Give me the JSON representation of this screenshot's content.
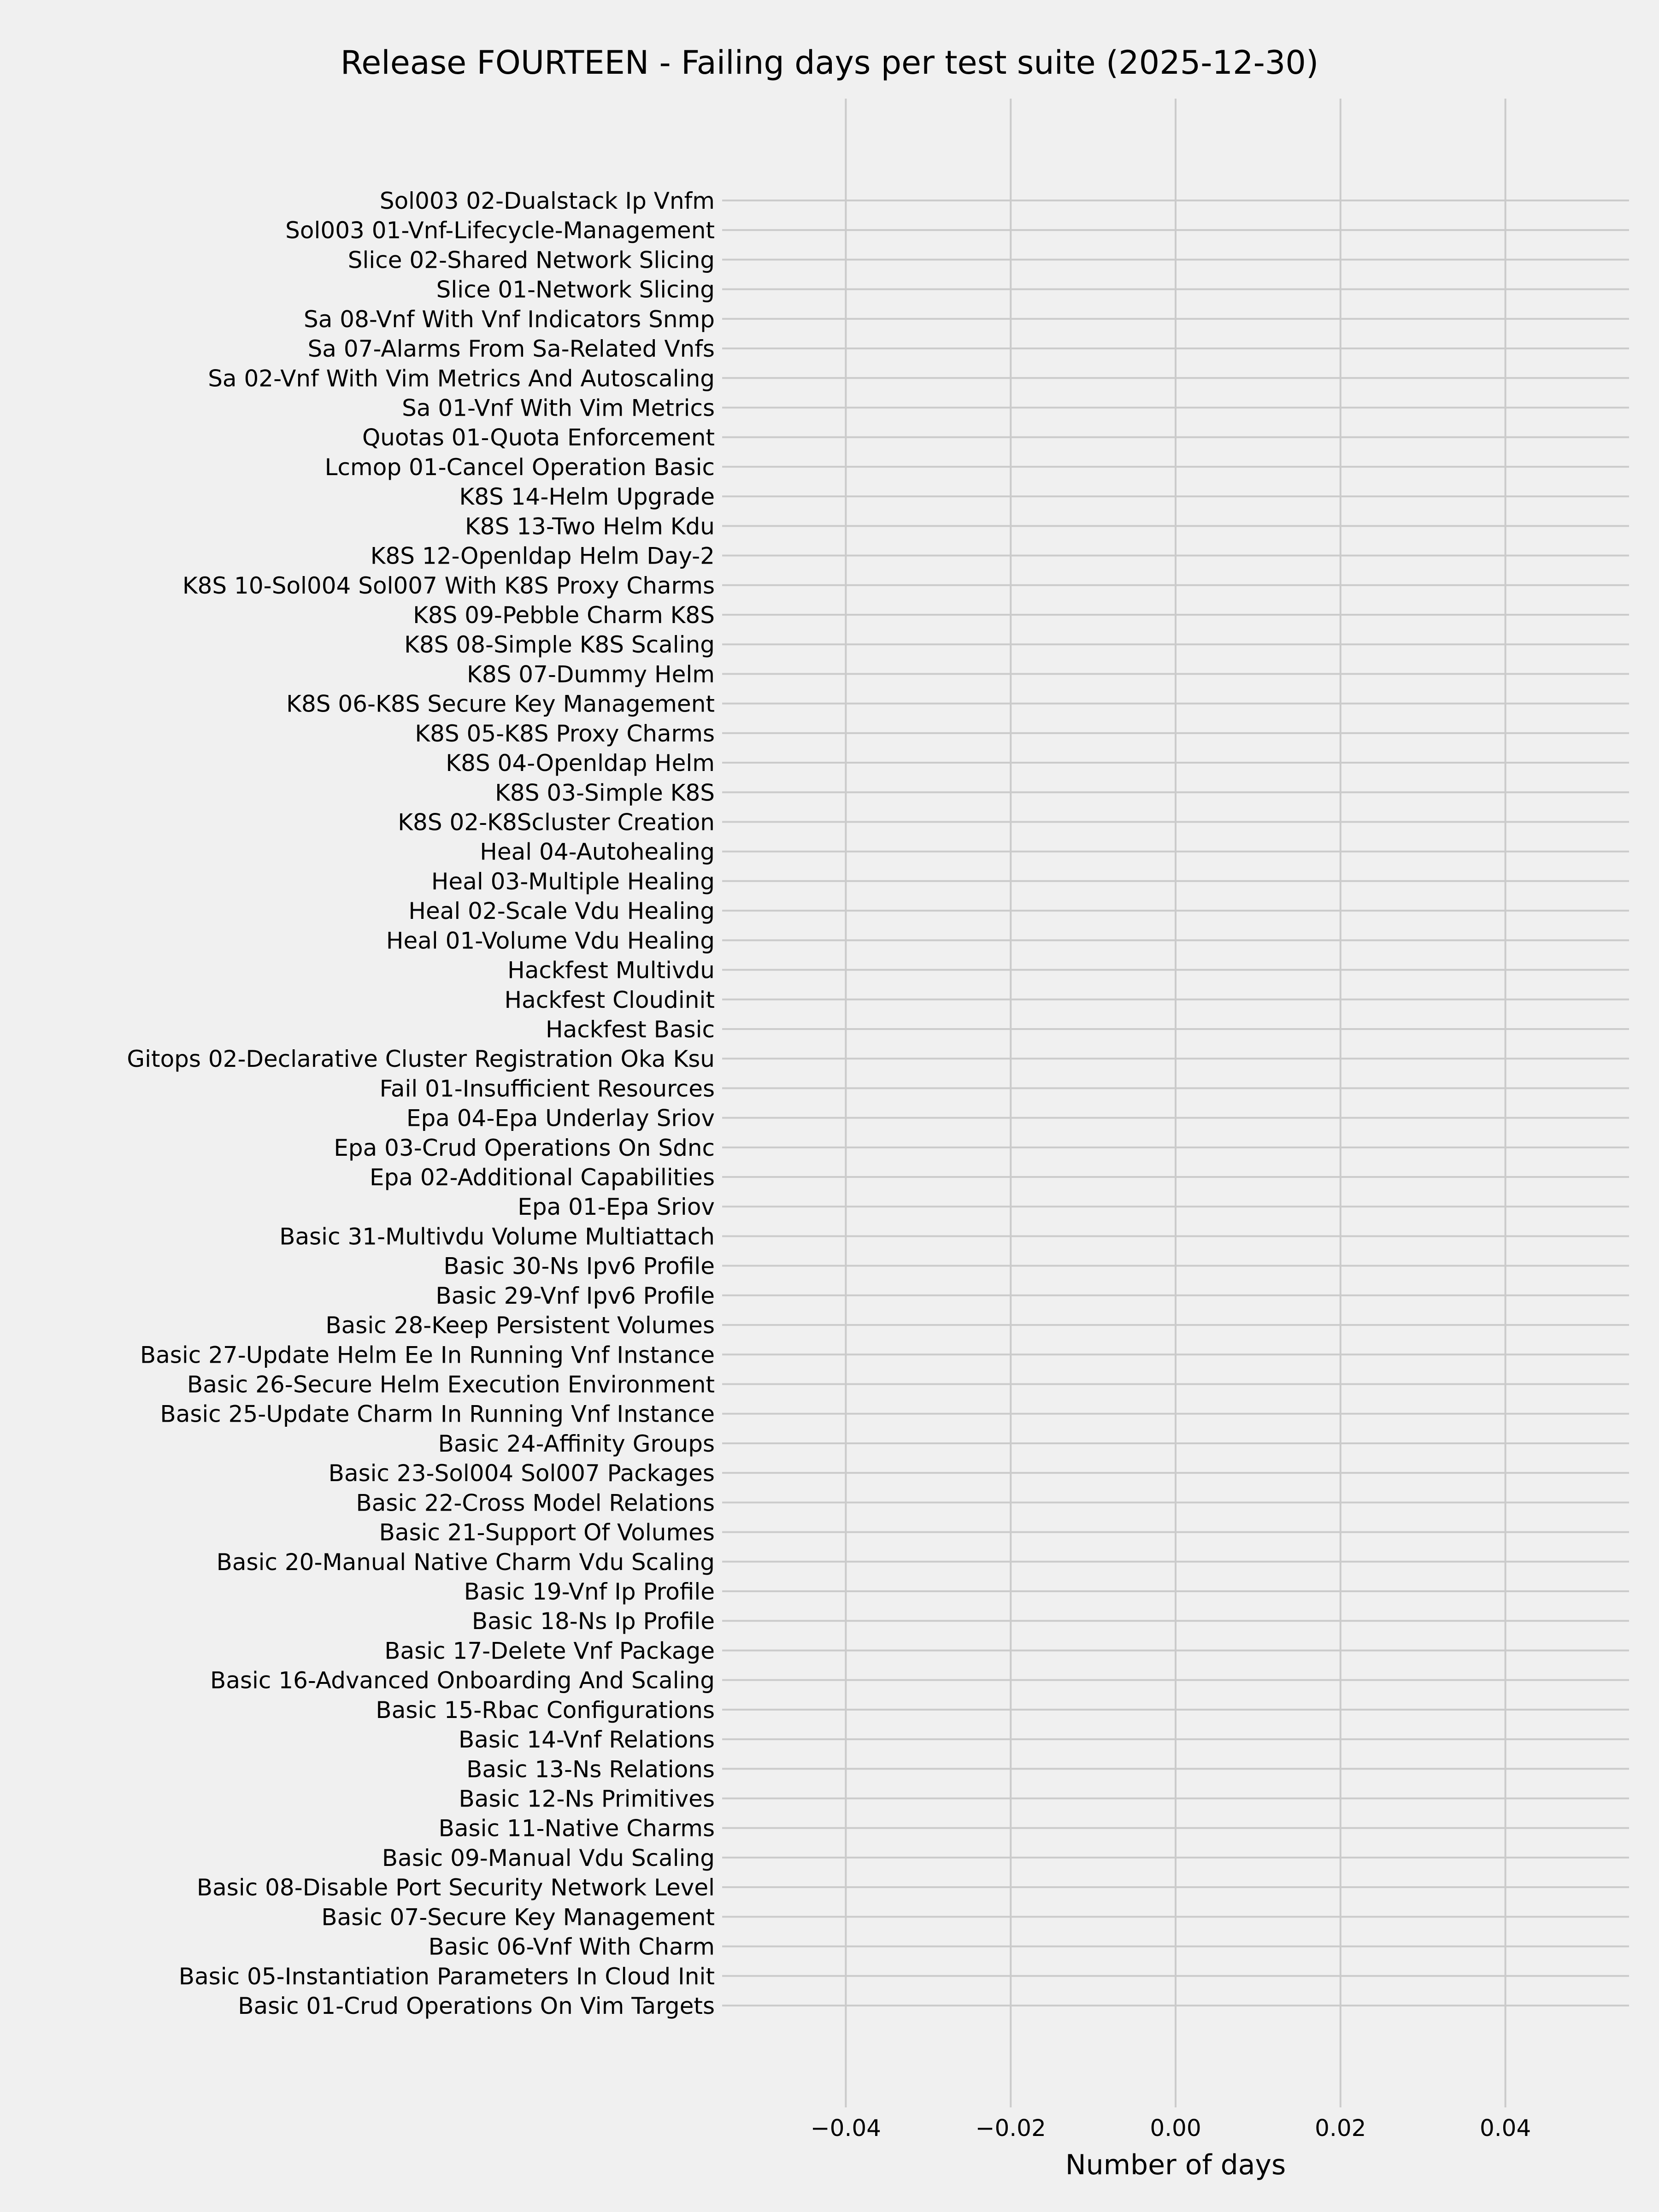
{
  "chart_data": {
    "type": "bar",
    "orientation": "horizontal",
    "title": "Release FOURTEEN - Failing days per test suite (2025-12-30)",
    "xlabel": "Number of days",
    "ylabel": "",
    "xlim": [
      -0.055,
      0.055
    ],
    "xticks": [
      -0.04,
      -0.02,
      0.0,
      0.02,
      0.04
    ],
    "xtick_labels": [
      "−0.04",
      "−0.02",
      "0.00",
      "0.02",
      "0.04"
    ],
    "grid": true,
    "background_color": "#f0f0f0",
    "grid_color": "#cbcbcb",
    "categories": [
      "Sol003 02-Dualstack Ip Vnfm",
      "Sol003 01-Vnf-Lifecycle-Management",
      "Slice 02-Shared Network Slicing",
      "Slice 01-Network Slicing",
      "Sa 08-Vnf With Vnf Indicators Snmp",
      "Sa 07-Alarms From Sa-Related Vnfs",
      "Sa 02-Vnf With Vim Metrics And Autoscaling",
      "Sa 01-Vnf With Vim Metrics",
      "Quotas 01-Quota Enforcement",
      "Lcmop 01-Cancel Operation Basic",
      "K8S 14-Helm Upgrade",
      "K8S 13-Two Helm Kdu",
      "K8S 12-Openldap Helm Day-2",
      "K8S 10-Sol004 Sol007 With K8S Proxy Charms",
      "K8S 09-Pebble Charm K8S",
      "K8S 08-Simple K8S Scaling",
      "K8S 07-Dummy Helm",
      "K8S 06-K8S Secure Key Management",
      "K8S 05-K8S Proxy Charms",
      "K8S 04-Openldap Helm",
      "K8S 03-Simple K8S",
      "K8S 02-K8Scluster Creation",
      "Heal 04-Autohealing",
      "Heal 03-Multiple Healing",
      "Heal 02-Scale Vdu Healing",
      "Heal 01-Volume Vdu Healing",
      "Hackfest Multivdu",
      "Hackfest Cloudinit",
      "Hackfest Basic",
      "Gitops 02-Declarative Cluster Registration Oka Ksu",
      "Fail 01-Insufficient Resources",
      "Epa 04-Epa Underlay Sriov",
      "Epa 03-Crud Operations On Sdnc",
      "Epa 02-Additional Capabilities",
      "Epa 01-Epa Sriov",
      "Basic 31-Multivdu Volume Multiattach",
      "Basic 30-Ns Ipv6 Profile",
      "Basic 29-Vnf Ipv6 Profile",
      "Basic 28-Keep Persistent Volumes",
      "Basic 27-Update Helm Ee In Running Vnf Instance",
      "Basic 26-Secure Helm Execution Environment",
      "Basic 25-Update Charm In Running Vnf Instance",
      "Basic 24-Affinity Groups",
      "Basic 23-Sol004 Sol007 Packages",
      "Basic 22-Cross Model Relations",
      "Basic 21-Support Of Volumes",
      "Basic 20-Manual Native Charm Vdu Scaling",
      "Basic 19-Vnf Ip Profile",
      "Basic 18-Ns Ip Profile",
      "Basic 17-Delete Vnf Package",
      "Basic 16-Advanced Onboarding And Scaling",
      "Basic 15-Rbac Configurations",
      "Basic 14-Vnf Relations",
      "Basic 13-Ns Relations",
      "Basic 12-Ns Primitives",
      "Basic 11-Native Charms",
      "Basic 09-Manual Vdu Scaling",
      "Basic 08-Disable Port Security Network Level",
      "Basic 07-Secure Key Management",
      "Basic 06-Vnf With Charm",
      "Basic 05-Instantiation Parameters In Cloud Init",
      "Basic 01-Crud Operations On Vim Targets"
    ],
    "values": [
      0,
      0,
      0,
      0,
      0,
      0,
      0,
      0,
      0,
      0,
      0,
      0,
      0,
      0,
      0,
      0,
      0,
      0,
      0,
      0,
      0,
      0,
      0,
      0,
      0,
      0,
      0,
      0,
      0,
      0,
      0,
      0,
      0,
      0,
      0,
      0,
      0,
      0,
      0,
      0,
      0,
      0,
      0,
      0,
      0,
      0,
      0,
      0,
      0,
      0,
      0,
      0,
      0,
      0,
      0,
      0,
      0,
      0,
      0,
      0,
      0,
      0
    ]
  }
}
